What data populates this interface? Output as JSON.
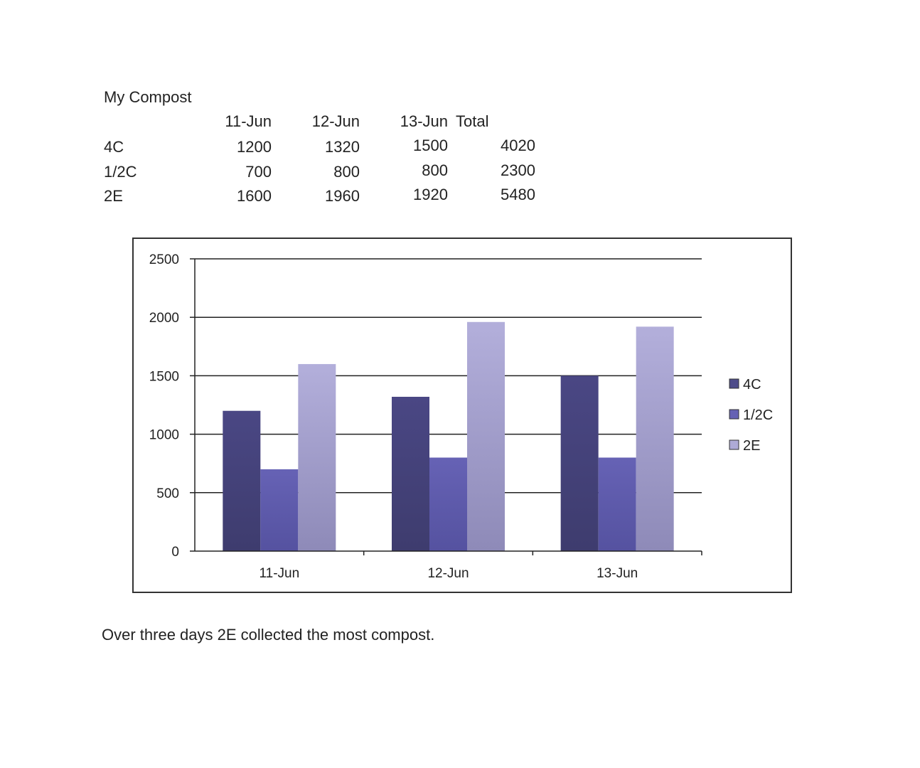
{
  "table": {
    "title": "My Compost",
    "headers": [
      "11-Jun",
      "12-Jun",
      "13-Jun",
      "Total"
    ],
    "rows": [
      {
        "label": "4C",
        "values": [
          "1200",
          "1320",
          "1500",
          "4020"
        ]
      },
      {
        "label": "1/2C",
        "values": [
          "700",
          "800",
          "800",
          "2300"
        ]
      },
      {
        "label": "2E",
        "values": [
          "1600",
          "1960",
          "1920",
          "5480"
        ]
      }
    ]
  },
  "chart_data": {
    "type": "bar",
    "title": "",
    "xlabel": "",
    "ylabel": "",
    "categories": [
      "11-Jun",
      "12-Jun",
      "13-Jun"
    ],
    "series": [
      {
        "name": "4C",
        "values": [
          1200,
          1320,
          1500
        ],
        "color": "#4e4c8a"
      },
      {
        "name": "1/2C",
        "values": [
          700,
          800,
          800
        ],
        "color": "#6561b4"
      },
      {
        "name": "2E",
        "values": [
          1600,
          1960,
          1920
        ],
        "color": "#aeaad6"
      }
    ],
    "ylim": [
      0,
      2500
    ],
    "yticks": [
      0,
      500,
      1000,
      1500,
      2000,
      2500
    ],
    "grid": true,
    "legend": "right"
  },
  "caption": "Over three days 2E collected the most compost."
}
